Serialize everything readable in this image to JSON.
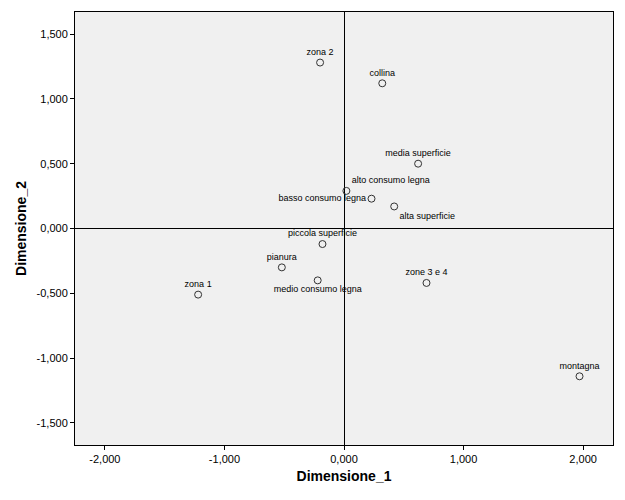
{
  "chart_data": {
    "type": "scatter",
    "xlabel": "Dimensione_1",
    "ylabel": "Dimensione_2",
    "point_labels": [
      "zona 2",
      "collina",
      "media superficie",
      "alto consumo legna",
      "basso consumo legna",
      "alta superficie",
      "piccola superficie",
      "pianura",
      "medio consumo legna",
      "zona 1",
      "zone 3 e 4",
      "montagna"
    ],
    "x": [
      -0.2,
      0.32,
      0.62,
      0.02,
      0.23,
      0.42,
      -0.18,
      -0.52,
      -0.22,
      -1.22,
      0.69,
      1.97
    ],
    "y": [
      1.28,
      1.12,
      0.5,
      0.29,
      0.23,
      0.17,
      -0.12,
      -0.3,
      -0.4,
      -0.51,
      -0.42,
      -1.14
    ],
    "xlim": [
      -2.25,
      2.25
    ],
    "ylim": [
      -1.67,
      1.67
    ],
    "xticks": [
      {
        "value": -2,
        "label": "-2,000"
      },
      {
        "value": -1,
        "label": "-1,000"
      },
      {
        "value": 0,
        "label": "0,000"
      },
      {
        "value": 1,
        "label": "1,000"
      },
      {
        "value": 2,
        "label": "2,000"
      }
    ],
    "yticks": [
      {
        "value": -1.5,
        "label": "-1,500"
      },
      {
        "value": -1,
        "label": "-1,000"
      },
      {
        "value": -0.5,
        "label": "-0,500"
      },
      {
        "value": 0,
        "label": "0,000"
      },
      {
        "value": 0.5,
        "label": "0,500"
      },
      {
        "value": 1,
        "label": "1,000"
      },
      {
        "value": 1.5,
        "label": "1,500"
      }
    ],
    "grid": false,
    "marker": "circle-open",
    "color": "#333333"
  }
}
